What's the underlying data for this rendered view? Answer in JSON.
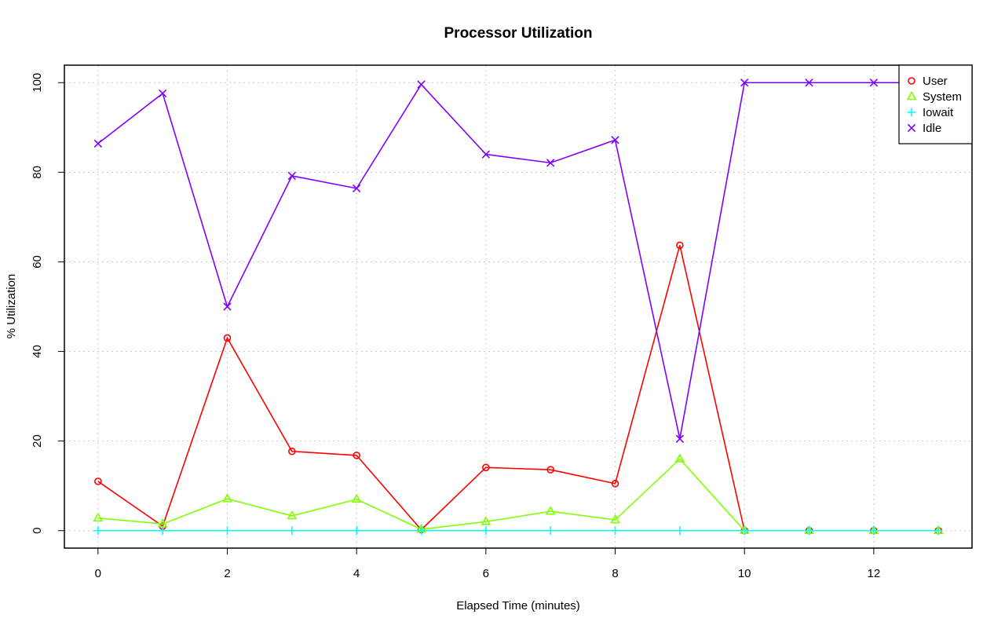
{
  "chart_data": {
    "type": "line",
    "title": "Processor Utilization",
    "xlabel": "Elapsed Time (minutes)",
    "ylabel": "% Utilization",
    "x": [
      0,
      1,
      2,
      3,
      4,
      5,
      6,
      7,
      8,
      9,
      10,
      11,
      12,
      13
    ],
    "xlim": [
      -0.52,
      13.52
    ],
    "ylim": [
      -3.9,
      103.9
    ],
    "xticks": [
      0,
      2,
      4,
      6,
      8,
      10,
      12
    ],
    "yticks": [
      0,
      20,
      40,
      60,
      80,
      100
    ],
    "grid": true,
    "legend_position": "top-right",
    "series": [
      {
        "name": "User",
        "color": "#ff0000",
        "marker": "circle",
        "values": [
          11.0,
          1.0,
          43.0,
          17.7,
          16.8,
          0.2,
          14.1,
          13.6,
          10.5,
          63.7,
          0,
          0,
          0,
          0
        ]
      },
      {
        "name": "System",
        "color": "#80ff00",
        "marker": "triangle",
        "values": [
          2.8,
          1.5,
          7.1,
          3.3,
          7.0,
          0.3,
          2.0,
          4.3,
          2.4,
          16.0,
          0,
          0,
          0,
          0
        ]
      },
      {
        "name": "Iowait",
        "color": "#00ffff",
        "marker": "plus",
        "values": [
          0,
          0,
          0,
          0,
          0,
          0,
          0,
          0,
          0,
          0,
          0,
          0,
          0,
          0
        ]
      },
      {
        "name": "Idle",
        "color": "#8000ff",
        "marker": "cross",
        "values": [
          86.4,
          97.6,
          50.0,
          79.2,
          76.4,
          99.6,
          84.0,
          82.1,
          87.2,
          20.5,
          100,
          100,
          100,
          100
        ]
      }
    ]
  }
}
